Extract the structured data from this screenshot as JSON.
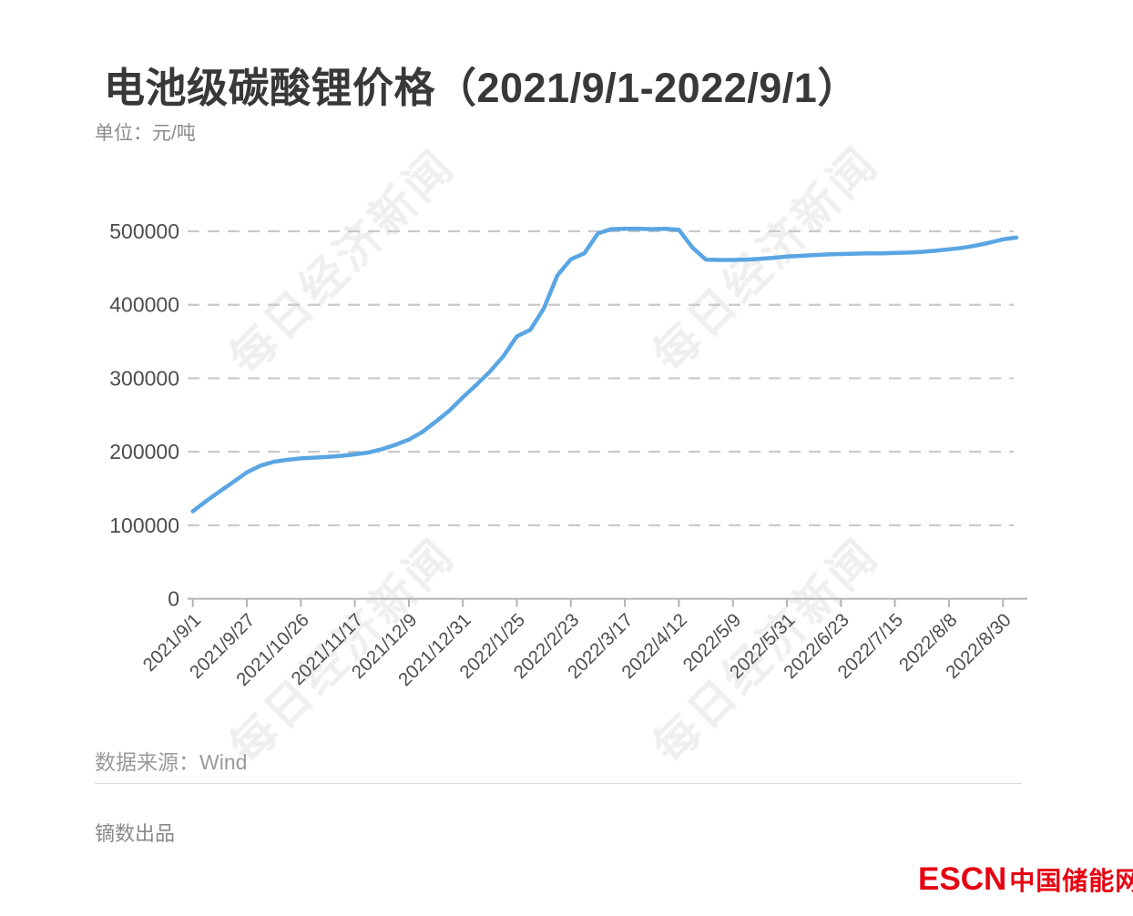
{
  "title": "电池级碳酸锂价格（2021/9/1-2022/9/1）",
  "unit_label": "单位：元/吨",
  "source_label": "数据来源：Wind",
  "producer_label": "镝数出品",
  "watermark": {
    "text": "每日经济新闻"
  },
  "logo": {
    "escn": "ESCN",
    "cn": "中国储能网"
  },
  "colors": {
    "line": "#5aa5e3",
    "grid": "#c9c9c9",
    "axis": "#b3b3b3",
    "tick_text": "#4d4d4d",
    "title_text": "#383838",
    "muted_text": "#9a9a9a",
    "logo_red": "#e60012",
    "watermark": "#efefef"
  },
  "chart_data": {
    "type": "line",
    "title": "电池级碳酸锂价格（2021/9/1-2022/9/1）",
    "xlabel": "",
    "ylabel": "元/吨",
    "ylim": [
      0,
      520000
    ],
    "y_ticks": [
      0,
      100000,
      200000,
      300000,
      400000,
      500000
    ],
    "grid": "horizontal dashed",
    "legend_position": "none",
    "x_tick_labels": [
      "2021/9/1",
      "2021/9/27",
      "2021/10/26",
      "2021/11/17",
      "2021/12/9",
      "2021/12/31",
      "2022/1/25",
      "2022/2/23",
      "2022/3/17",
      "2022/4/12",
      "2022/5/9",
      "2022/5/31",
      "2022/6/23",
      "2022/7/15",
      "2022/8/8",
      "2022/8/30"
    ],
    "x_end_date": "2022/9/1",
    "samples_per_tick_interval": 4,
    "series": [
      {
        "name": "电池级碳酸锂价格(元/吨)",
        "values": [
          119000,
          133000,
          146000,
          159000,
          172000,
          181000,
          186500,
          189000,
          191000,
          192000,
          193000,
          194500,
          196500,
          199000,
          203500,
          209500,
          216500,
          227000,
          241000,
          256000,
          274000,
          291000,
          309000,
          330000,
          357000,
          366000,
          395000,
          440000,
          462000,
          470000,
          497000,
          503000,
          503500,
          503500,
          503000,
          503500,
          502000,
          478000,
          461500,
          461000,
          461000,
          461500,
          462500,
          464000,
          465500,
          466500,
          467500,
          468500,
          469000,
          469500,
          470000,
          470000,
          470500,
          471000,
          472000,
          473500,
          475500,
          477500,
          480500,
          484500,
          489000,
          491500
        ]
      }
    ],
    "notable_points": {
      "start": {
        "date": "2021/9/1",
        "value": 119000
      },
      "peak_plateau": {
        "date_range": "2022/3/17-2022/4/12",
        "value": 503500
      },
      "post_peak_trough": {
        "date": "2022/5/9",
        "value": 461000
      },
      "end": {
        "date": "2022/9/1",
        "value": 491500
      }
    }
  }
}
